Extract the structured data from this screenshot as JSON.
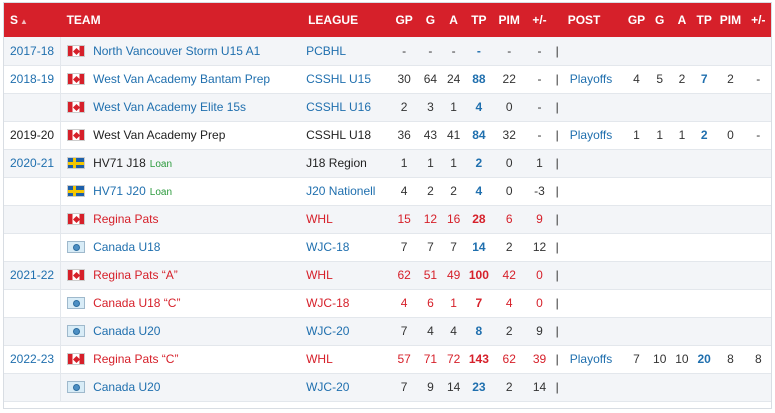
{
  "headers": {
    "season": "S",
    "team": "TEAM",
    "league": "LEAGUE",
    "gp": "GP",
    "g": "G",
    "a": "A",
    "tp": "TP",
    "pim": "PIM",
    "pm": "+/-",
    "post": "POST",
    "pgp": "GP",
    "pg": "G",
    "pa": "A",
    "ptp": "TP",
    "ppim": "PIM",
    "ppm": "+/-"
  },
  "rows": [
    {
      "season": "2017-18",
      "flag": "flag-ca",
      "team": "North Vancouver Storm U15 A1",
      "loan": "",
      "league": "PCBHL",
      "gp": "-",
      "g": "-",
      "a": "-",
      "tp": "-",
      "pim": "-",
      "pm": "-",
      "sep": "|",
      "post": "",
      "pgp": "",
      "pg": "",
      "pa": "",
      "ptp": "",
      "ppim": "",
      "ppm": ""
    },
    {
      "season": "2018-19",
      "flag": "flag-ca",
      "team": "West Van Academy Bantam Prep",
      "loan": "",
      "league": "CSSHL U15",
      "gp": "30",
      "g": "64",
      "a": "24",
      "tp": "88",
      "pim": "22",
      "pm": "-",
      "sep": "|",
      "post": "Playoffs",
      "pgp": "4",
      "pg": "5",
      "pa": "2",
      "ptp": "7",
      "ppim": "2",
      "ppm": "-"
    },
    {
      "season": "",
      "flag": "flag-ca",
      "team": "West Van Academy Elite 15s",
      "loan": "",
      "league": "CSSHL U16",
      "gp": "2",
      "g": "3",
      "a": "1",
      "tp": "4",
      "pim": "0",
      "pm": "-",
      "sep": "|",
      "post": "",
      "pgp": "",
      "pg": "",
      "pa": "",
      "ptp": "",
      "ppim": "",
      "ppm": ""
    },
    {
      "season": "2019-20",
      "flag": "flag-ca",
      "team": "West Van Academy Prep",
      "loan": "",
      "league": "CSSHL U18",
      "gp": "36",
      "g": "43",
      "a": "41",
      "tp": "84",
      "pim": "32",
      "pm": "-",
      "sep": "|",
      "post": "Playoffs",
      "pgp": "1",
      "pg": "1",
      "pa": "1",
      "ptp": "2",
      "ppim": "0",
      "ppm": "-"
    },
    {
      "season": "2020-21",
      "flag": "flag-se",
      "team": "HV71 J18",
      "loan": "Loan",
      "league": "J18 Region",
      "gp": "1",
      "g": "1",
      "a": "1",
      "tp": "2",
      "pim": "0",
      "pm": "1",
      "sep": "|",
      "post": "",
      "pgp": "",
      "pg": "",
      "pa": "",
      "ptp": "",
      "ppim": "",
      "ppm": ""
    },
    {
      "season": "",
      "flag": "flag-se",
      "team": "HV71 J20",
      "loan": "Loan",
      "league": "J20 Nationell",
      "gp": "4",
      "g": "2",
      "a": "2",
      "tp": "4",
      "pim": "0",
      "pm": "-3",
      "sep": "|",
      "post": "",
      "pgp": "",
      "pg": "",
      "pa": "",
      "ptp": "",
      "ppim": "",
      "ppm": ""
    },
    {
      "season": "",
      "flag": "flag-ca",
      "team": "Regina Pats",
      "loan": "",
      "league": "WHL",
      "gp": "15",
      "g": "12",
      "a": "16",
      "tp": "28",
      "pim": "6",
      "pm": "9",
      "sep": "|",
      "post": "",
      "pgp": "",
      "pg": "",
      "pa": "",
      "ptp": "",
      "ppim": "",
      "ppm": ""
    },
    {
      "season": "",
      "flag": "flag-intl",
      "team": "Canada U18",
      "loan": "",
      "league": "WJC-18",
      "gp": "7",
      "g": "7",
      "a": "7",
      "tp": "14",
      "pim": "2",
      "pm": "12",
      "sep": "|",
      "post": "",
      "pgp": "",
      "pg": "",
      "pa": "",
      "ptp": "",
      "ppim": "",
      "ppm": ""
    },
    {
      "season": "2021-22",
      "flag": "flag-ca",
      "team": "Regina Pats “A”",
      "loan": "",
      "league": "WHL",
      "gp": "62",
      "g": "51",
      "a": "49",
      "tp": "100",
      "pim": "42",
      "pm": "0",
      "sep": "|",
      "post": "",
      "pgp": "",
      "pg": "",
      "pa": "",
      "ptp": "",
      "ppim": "",
      "ppm": ""
    },
    {
      "season": "",
      "flag": "flag-intl",
      "team": "Canada U18 “C”",
      "loan": "",
      "league": "WJC-18",
      "gp": "4",
      "g": "6",
      "a": "1",
      "tp": "7",
      "pim": "4",
      "pm": "0",
      "sep": "|",
      "post": "",
      "pgp": "",
      "pg": "",
      "pa": "",
      "ptp": "",
      "ppim": "",
      "ppm": ""
    },
    {
      "season": "",
      "flag": "flag-intl",
      "team": "Canada U20",
      "loan": "",
      "league": "WJC-20",
      "gp": "7",
      "g": "4",
      "a": "4",
      "tp": "8",
      "pim": "2",
      "pm": "9",
      "sep": "|",
      "post": "",
      "pgp": "",
      "pg": "",
      "pa": "",
      "ptp": "",
      "ppim": "",
      "ppm": ""
    },
    {
      "season": "2022-23",
      "flag": "flag-ca",
      "team": "Regina Pats “C”",
      "loan": "",
      "league": "WHL",
      "gp": "57",
      "g": "71",
      "a": "72",
      "tp": "143",
      "pim": "62",
      "pm": "39",
      "sep": "|",
      "post": "Playoffs",
      "pgp": "7",
      "pg": "10",
      "pa": "10",
      "ptp": "20",
      "ppim": "8",
      "ppm": "8"
    },
    {
      "season": "",
      "flag": "flag-intl",
      "team": "Canada U20",
      "loan": "",
      "league": "WJC-20",
      "gp": "7",
      "g": "9",
      "a": "14",
      "tp": "23",
      "pim": "2",
      "pm": "14",
      "sep": "|",
      "post": "",
      "pgp": "",
      "pg": "",
      "pa": "",
      "ptp": "",
      "ppim": "",
      "ppm": ""
    }
  ],
  "styles": {
    "red_rows": [
      7,
      9,
      10,
      12
    ],
    "plain_season": [
      4
    ],
    "plain_team": [
      4,
      5
    ],
    "plain_league": [
      4,
      5
    ],
    "alt_rows": [
      0,
      2,
      4,
      6,
      8,
      10,
      12
    ]
  },
  "colors": {
    "header_bg": "#d6202a",
    "link": "#1f6fae",
    "international": "#d6202a",
    "loan": "#2b9a3c"
  }
}
